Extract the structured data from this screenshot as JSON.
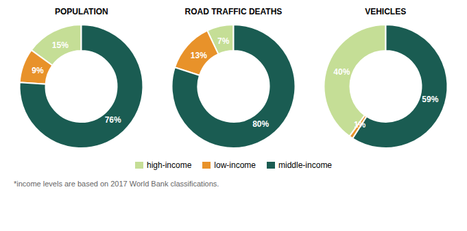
{
  "chart_data": [
    {
      "type": "pie",
      "title": "POPULATION",
      "categories": [
        "high-income",
        "low-income",
        "middle-income"
      ],
      "values": [
        15,
        9,
        76
      ],
      "value_labels": [
        "15%",
        "9%",
        "76%"
      ],
      "colors": [
        "#c5de96",
        "#e8922a",
        "#1a5c52"
      ],
      "data_labels": true
    },
    {
      "type": "pie",
      "title": "ROAD TRAFFIC DEATHS",
      "categories": [
        "high-income",
        "low-income",
        "middle-income"
      ],
      "values": [
        7,
        13,
        80
      ],
      "value_labels": [
        "7%",
        "13%",
        "80%"
      ],
      "colors": [
        "#c5de96",
        "#e8922a",
        "#1a5c52"
      ],
      "data_labels": true
    },
    {
      "type": "pie",
      "title": "VEHICLES",
      "categories": [
        "high-income",
        "low-income",
        "middle-income"
      ],
      "values": [
        40,
        1,
        59
      ],
      "value_labels": [
        "40%",
        "1%",
        "59%"
      ],
      "colors": [
        "#c5de96",
        "#e8922a",
        "#1a5c52"
      ],
      "data_labels": true
    }
  ],
  "annotations": [
    "*income levels are based on 2017 World Bank classifications."
  ]
}
